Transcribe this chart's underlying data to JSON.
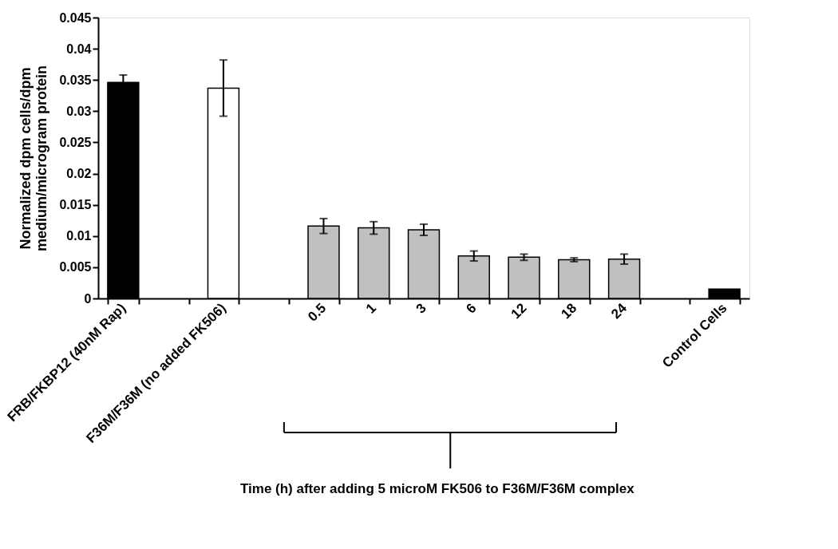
{
  "chart_data": {
    "type": "bar",
    "ylabel": "Normalized dpm cells/dpm medium/microgram protein",
    "xlabel": "Time (h) after adding 5 microM FK506 to F36M/F36M complex",
    "categories": [
      "FRB/FKBP12 (40nM Rap)",
      null,
      "F36M/F36M (no added FK506)",
      null,
      "0.5",
      "1",
      "3",
      "6",
      "12",
      "18",
      "24",
      null,
      "Control Cells"
    ],
    "values": [
      0.0346,
      null,
      0.0337,
      null,
      0.0116,
      0.0113,
      0.011,
      0.0068,
      0.0066,
      0.0062,
      0.0063,
      null,
      0.0015
    ],
    "errors": [
      0.0012,
      null,
      0.0045,
      null,
      0.0012,
      0.001,
      0.0009,
      0.0008,
      0.0005,
      0.0003,
      0.0008,
      null,
      null
    ],
    "colors": [
      "#000000",
      null,
      "#ffffff",
      null,
      "#c0c0c0",
      "#c0c0c0",
      "#c0c0c0",
      "#c0c0c0",
      "#c0c0c0",
      "#c0c0c0",
      "#c0c0c0",
      null,
      "#000000"
    ],
    "ylim": [
      0,
      0.045
    ],
    "yticks": [
      0,
      0.005,
      0.01,
      0.015,
      0.02,
      0.025,
      0.03,
      0.035,
      0.04,
      0.045
    ],
    "grid": false
  }
}
